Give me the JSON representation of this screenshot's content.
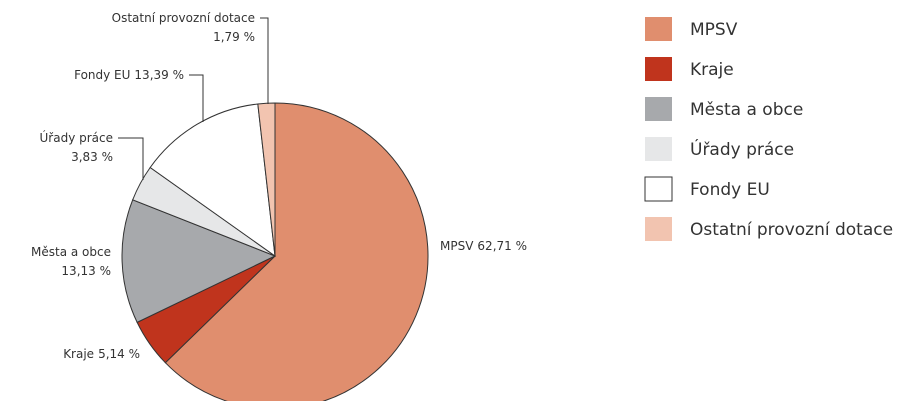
{
  "chart_data": {
    "type": "pie",
    "categories": [
      "MPSV",
      "Kraje",
      "Města a obce",
      "Úřady práce",
      "Fondy EU",
      "Ostatní provozní dotace"
    ],
    "values": [
      62.71,
      5.14,
      13.13,
      3.83,
      13.39,
      1.79
    ],
    "value_labels": [
      "62,71 %",
      "5,14 %",
      "13,13 %",
      "3,83 %",
      "13,39 %",
      "1,79 %"
    ],
    "colors": [
      "#e08e6e",
      "#c0341d",
      "#a7a9ac",
      "#e6e7e8",
      "#ffffff",
      "#f2c4b0"
    ],
    "legend": "right"
  }
}
